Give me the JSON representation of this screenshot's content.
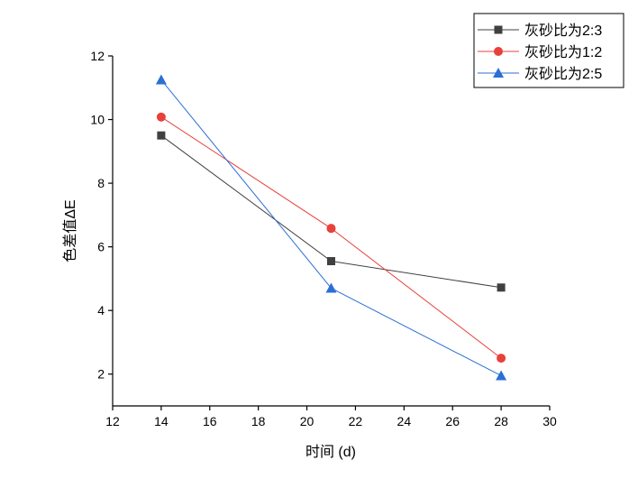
{
  "chart_data": {
    "type": "line",
    "title": "",
    "xlabel": "时间 (d)",
    "ylabel": "色差值ΔE",
    "xlim": [
      12,
      30
    ],
    "ylim": [
      1,
      12
    ],
    "xticks": [
      12,
      14,
      16,
      18,
      20,
      22,
      24,
      26,
      28,
      30
    ],
    "yticks": [
      2,
      4,
      6,
      8,
      10,
      12
    ],
    "grid": false,
    "legend_position": "top-right",
    "series": [
      {
        "name": "灰砂比为2:3",
        "color": "#404040",
        "marker": "square",
        "x": [
          14,
          21,
          28
        ],
        "y": [
          9.5,
          5.55,
          4.72
        ]
      },
      {
        "name": "灰砂比为1:2",
        "color": "#e8413b",
        "marker": "circle",
        "x": [
          14,
          21,
          28
        ],
        "y": [
          10.08,
          6.58,
          2.5
        ]
      },
      {
        "name": "灰砂比为2:5",
        "color": "#2b6fd6",
        "marker": "triangle",
        "x": [
          14,
          21,
          28
        ],
        "y": [
          11.25,
          4.7,
          1.95
        ]
      }
    ]
  }
}
